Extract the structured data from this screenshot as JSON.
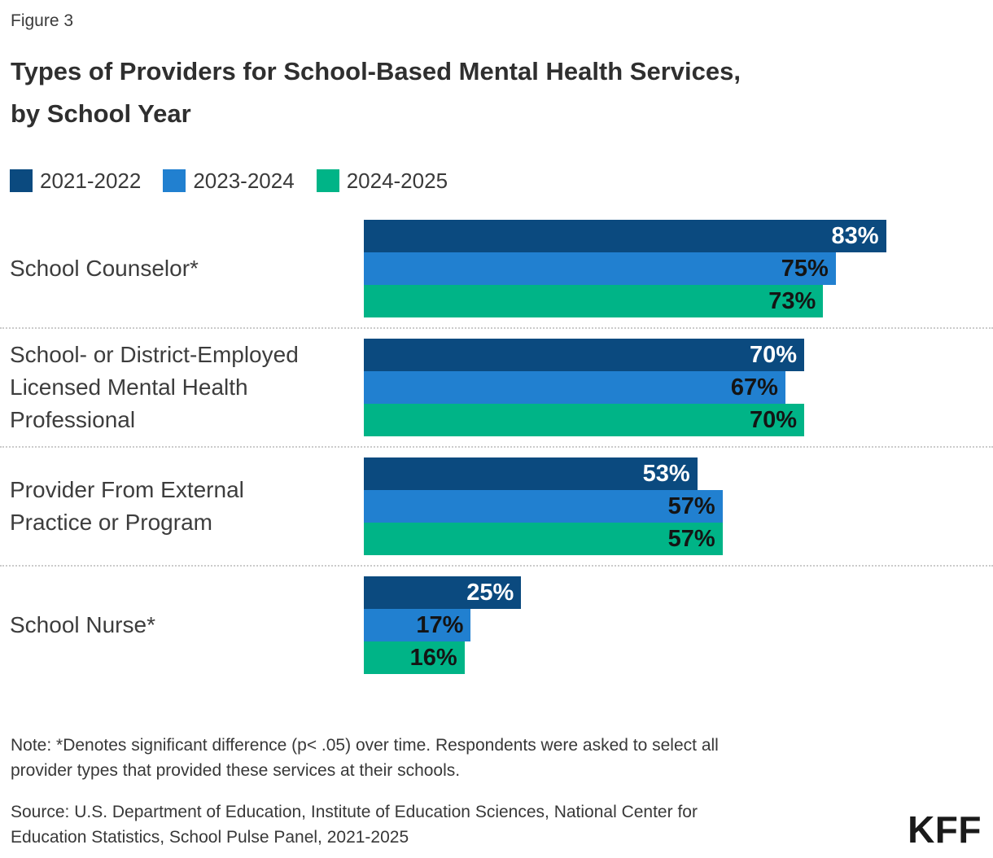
{
  "figure_label": "Figure 3",
  "title": "Types of Providers for School-Based Mental Health Services,\nby School Year",
  "colors": {
    "series_2021_2022": "#0B4A7F",
    "series_2023_2024": "#2180D0",
    "series_2024_2025": "#00B487",
    "value_label_on_dark": "#FFFFFF",
    "value_label_on_light": "#141414",
    "divider": "#CBCBCB",
    "text": "#333333",
    "logo": "#1A1A1A"
  },
  "legend": [
    {
      "label": "2021-2022",
      "color": "#0B4A7F"
    },
    {
      "label": "2023-2024",
      "color": "#2180D0"
    },
    {
      "label": "2024-2025",
      "color": "#00B487"
    }
  ],
  "chart_data": {
    "type": "bar",
    "orientation": "horizontal",
    "title": "Types of Providers for School-Based Mental Health Services, by School Year",
    "categories": [
      "School Counselor*",
      "School- or District-Employed\nLicensed Mental Health\nProfessional",
      "Provider From External\nPractice or Program",
      "School Nurse*"
    ],
    "series": [
      {
        "name": "2021-2022",
        "color": "#0B4A7F",
        "label_color": "#FFFFFF",
        "values": [
          83,
          70,
          53,
          25
        ]
      },
      {
        "name": "2023-2024",
        "color": "#2180D0",
        "label_color": "#141414",
        "values": [
          75,
          67,
          57,
          17
        ]
      },
      {
        "name": "2024-2025",
        "color": "#00B487",
        "label_color": "#141414",
        "values": [
          73,
          70,
          57,
          16
        ]
      }
    ],
    "value_suffix": "%",
    "xlim": [
      0,
      100
    ],
    "grid": false,
    "legend_position": "top",
    "value_labels": "inside-end"
  },
  "note": "Note: *Denotes significant difference (p< .05) over time. Respondents were asked to select all\nprovider types that provided these services at their schools.",
  "source": "Source: U.S. Department of Education, Institute of Education Sciences, National Center for\nEducation Statistics, School Pulse Panel, 2021-2025",
  "logo_text": "KFF"
}
